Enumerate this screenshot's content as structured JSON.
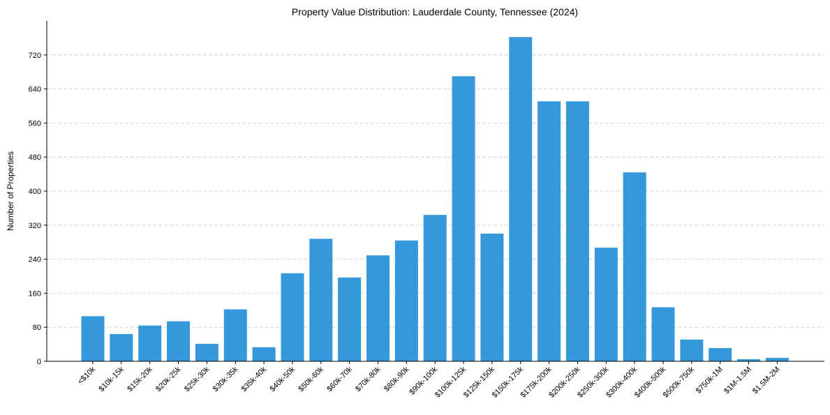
{
  "chart_data": {
    "type": "bar",
    "title": "Property Value Distribution: Lauderdale County, Tennessee (2024)",
    "xlabel": "",
    "ylabel": "Number of Properties",
    "ylim": [
      0,
      800
    ],
    "yticks": [
      0,
      80,
      160,
      240,
      320,
      400,
      480,
      560,
      640,
      720
    ],
    "grid": "y-dashed",
    "bar_color": "#3498db",
    "categories": [
      "<$10k",
      "$10k-15k",
      "$15k-20k",
      "$20k-25k",
      "$25k-30k",
      "$30k-35k",
      "$35k-40k",
      "$40k-50k",
      "$50k-60k",
      "$60k-70k",
      "$70k-80k",
      "$80k-90k",
      "$90k-100k",
      "$100k-125k",
      "$125k-150k",
      "$150k-175k",
      "$175k-200k",
      "$200k-250k",
      "$250k-300k",
      "$300k-400k",
      "$400k-500k",
      "$500k-750k",
      "$750k-1M",
      "$1M-1.5M",
      "$1.5M-2M"
    ],
    "values": [
      106,
      64,
      84,
      94,
      41,
      122,
      33,
      207,
      288,
      197,
      249,
      284,
      344,
      670,
      300,
      762,
      611,
      611,
      267,
      444,
      127,
      51,
      31,
      5,
      8
    ]
  }
}
